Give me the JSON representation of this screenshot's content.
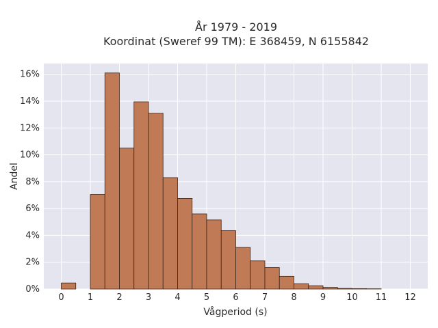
{
  "chart_data": {
    "type": "bar",
    "title_line1": "År 1979 - 2019",
    "title_line2": "Koordinat (Sweref 99 TM): E 368459, N 6155842",
    "xlabel": "Vågperiod (s)",
    "ylabel": "Andel",
    "xlim": [
      -0.6,
      12.6
    ],
    "ylim": [
      0,
      16.8
    ],
    "x_ticks": [
      0,
      1,
      2,
      3,
      4,
      5,
      6,
      7,
      8,
      9,
      10,
      11,
      12
    ],
    "y_ticks": [
      0,
      2,
      4,
      6,
      8,
      10,
      12,
      14,
      16
    ],
    "y_tick_labels": [
      "0%",
      "2%",
      "4%",
      "6%",
      "8%",
      "10%",
      "12%",
      "14%",
      "16%"
    ],
    "bin_width": 0.5,
    "bins": [
      {
        "x0": 0.0,
        "value": 0.45
      },
      {
        "x0": 1.0,
        "value": 7.05
      },
      {
        "x0": 1.5,
        "value": 16.1
      },
      {
        "x0": 2.0,
        "value": 10.5
      },
      {
        "x0": 2.5,
        "value": 13.95
      },
      {
        "x0": 3.0,
        "value": 13.1
      },
      {
        "x0": 3.5,
        "value": 8.3
      },
      {
        "x0": 4.0,
        "value": 6.75
      },
      {
        "x0": 4.5,
        "value": 5.6
      },
      {
        "x0": 5.0,
        "value": 5.15
      },
      {
        "x0": 5.5,
        "value": 4.35
      },
      {
        "x0": 6.0,
        "value": 3.1
      },
      {
        "x0": 6.5,
        "value": 2.1
      },
      {
        "x0": 7.0,
        "value": 1.6
      },
      {
        "x0": 7.5,
        "value": 0.95
      },
      {
        "x0": 8.0,
        "value": 0.4
      },
      {
        "x0": 8.5,
        "value": 0.25
      },
      {
        "x0": 9.0,
        "value": 0.12
      },
      {
        "x0": 9.5,
        "value": 0.05
      },
      {
        "x0": 10.0,
        "value": 0.03
      },
      {
        "x0": 10.5,
        "value": 0.02
      }
    ],
    "grid": true,
    "colors": {
      "bar": "#c07a55",
      "bar_edge": "#3a2416",
      "plot_background": "#e5e5f0",
      "grid": "#ffffff"
    }
  }
}
